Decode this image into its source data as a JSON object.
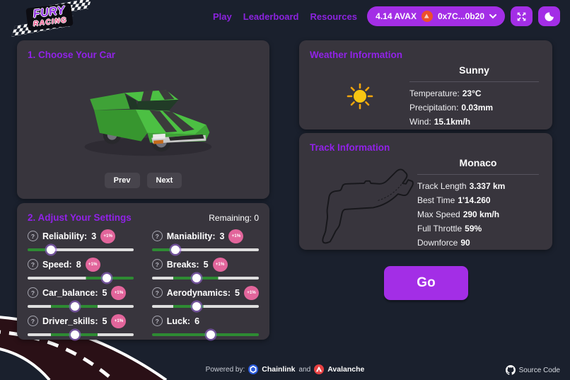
{
  "header": {
    "logo": {
      "line1": "FURY",
      "line2": "RACING"
    },
    "nav": [
      {
        "label": "Play"
      },
      {
        "label": "Leaderboard"
      },
      {
        "label": "Resources"
      }
    ],
    "wallet": {
      "balance": "4.14 AVAX",
      "address": "0x7C...0b20"
    }
  },
  "car_section": {
    "title": "1. Choose Your Car",
    "prev_label": "Prev",
    "next_label": "Next"
  },
  "settings_section": {
    "title": "2. Adjust Your Settings",
    "remaining_label": "Remaining:",
    "remaining_value": "0",
    "sliders": [
      {
        "label": "Reliability:",
        "value": "3",
        "badge": "+1%",
        "thumb": 22,
        "segments": [
          [
            "green",
            0,
            22
          ],
          [
            "light",
            22,
            100
          ]
        ]
      },
      {
        "label": "Maniability:",
        "value": "3",
        "badge": "+1%",
        "thumb": 22,
        "segments": [
          [
            "green",
            0,
            22
          ],
          [
            "light",
            22,
            100
          ]
        ]
      },
      {
        "label": "Speed:",
        "value": "8",
        "badge": "+1%",
        "thumb": 75,
        "segments": [
          [
            "light",
            0,
            55
          ],
          [
            "green",
            55,
            100
          ]
        ]
      },
      {
        "label": "Breaks:",
        "value": "5",
        "badge": "+1%",
        "thumb": 42,
        "segments": [
          [
            "light",
            0,
            20
          ],
          [
            "green",
            20,
            62
          ],
          [
            "light",
            62,
            100
          ]
        ]
      },
      {
        "label": "Car_balance:",
        "value": "5",
        "badge": "+1%",
        "thumb": 45,
        "segments": [
          [
            "light",
            0,
            22
          ],
          [
            "green",
            22,
            66
          ],
          [
            "light",
            66,
            100
          ]
        ]
      },
      {
        "label": "Aerodynamics:",
        "value": "5",
        "badge": "+1%",
        "thumb": 42,
        "segments": [
          [
            "light",
            0,
            20
          ],
          [
            "green",
            20,
            48
          ],
          [
            "light",
            48,
            100
          ]
        ]
      },
      {
        "label": "Driver_skills:",
        "value": "5",
        "badge": "+1%",
        "thumb": 45,
        "segments": [
          [
            "light",
            0,
            22
          ],
          [
            "green",
            22,
            66
          ],
          [
            "light",
            66,
            100
          ]
        ]
      },
      {
        "label": "Luck:",
        "value": "6",
        "badge": null,
        "thumb": 55,
        "segments": [
          [
            "green",
            0,
            100
          ]
        ]
      }
    ]
  },
  "weather_section": {
    "title": "Weather Information",
    "condition": "Sunny",
    "stats": [
      {
        "label": "Temperature:",
        "value": "23°C"
      },
      {
        "label": "Precipitation:",
        "value": "0.03mm"
      },
      {
        "label": "Wind:",
        "value": "15.1km/h"
      }
    ]
  },
  "track_section": {
    "title": "Track Information",
    "name": "Monaco",
    "stats": [
      {
        "label": "Track Length",
        "value": "3.337 km"
      },
      {
        "label": "Best Time",
        "value": "1'14.260"
      },
      {
        "label": "Max Speed",
        "value": "290 km/h"
      },
      {
        "label": "Full Throttle",
        "value": "59%"
      },
      {
        "label": "Downforce",
        "value": "90"
      }
    ]
  },
  "go_button": {
    "label": "Go"
  },
  "footer": {
    "powered_by": "Powered by:",
    "chainlink": "Chainlink",
    "and": "and",
    "avalanche": "Avalanche",
    "source_code": "Source Code"
  },
  "icons": {
    "wallet_avatar": "avalanche-orange-circle",
    "wallet_chevron": "chevron-down",
    "fullscreen": "expand-arrows",
    "theme_toggle": "moon-crescent",
    "slider_help": "question-circle",
    "weather": "sun",
    "chainlink": "blue-hexagon-link",
    "avalanche": "red-triangle",
    "source": "github-octocat"
  },
  "colors": {
    "page_bg": "#1a202d",
    "card_bg": "#38353d",
    "accent_purple": "#9122e8",
    "nav_purple": "#8b23dd",
    "button_purple": "#a32ee6",
    "badge_pink": "#e2659b",
    "slider_green": "#2e8b33",
    "slider_light": "#dedede",
    "car_green": "#4cc043"
  }
}
